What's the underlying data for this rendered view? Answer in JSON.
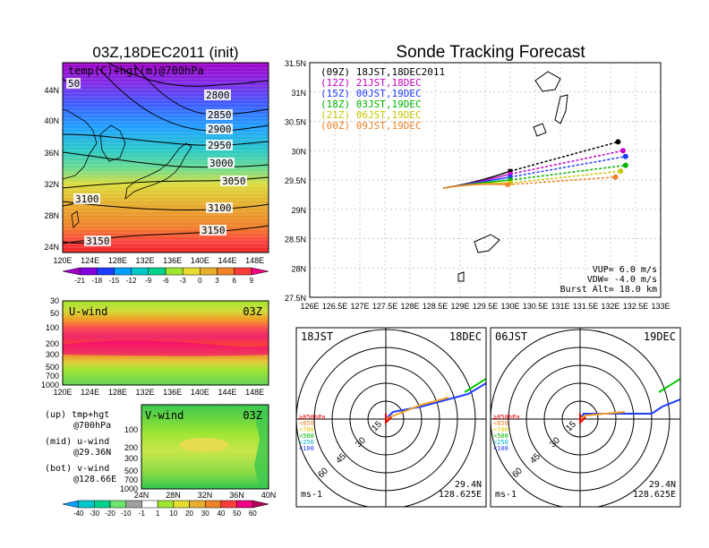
{
  "left_title": "03Z,18DEC2011 (init)",
  "right_title": "Sonde Tracking Forecast",
  "temp_panel": {
    "label": "temp(C)+hgt(m)@700hPa",
    "lon_ticks": [
      "120E",
      "124E",
      "128E",
      "132E",
      "136E",
      "140E",
      "144E",
      "148E"
    ],
    "lat_ticks": [
      "44N",
      "40N",
      "36N",
      "32N",
      "28N",
      "24N"
    ],
    "contours": [
      {
        "label": "2800"
      },
      {
        "label": "2850"
      },
      {
        "label": "2900"
      },
      {
        "label": "2950"
      },
      {
        "label": "3000"
      },
      {
        "label": "3050"
      },
      {
        "label": "3100"
      },
      {
        "label": "3150"
      },
      {
        "label": "3100"
      },
      {
        "label": "3150"
      },
      {
        "label": "50"
      }
    ],
    "colorbar": {
      "labels": [
        "-21",
        "-18",
        "-15",
        "-12",
        "-9",
        "-6",
        "-3",
        "0",
        "3",
        "6",
        "9"
      ],
      "colors": [
        "#a000c8",
        "#8200dc",
        "#1e3cff",
        "#00a0ff",
        "#00c8c8",
        "#00d28c",
        "#a0e632",
        "#e6dc32",
        "#e6af2d",
        "#f08228",
        "#fa3c3c",
        "#f00082"
      ]
    }
  },
  "uwind_panel": {
    "label": "U-wind",
    "time": "03Z",
    "p_ticks": [
      "30",
      "50",
      "100",
      "200",
      "300",
      "500",
      "700",
      "1000"
    ],
    "lon_ticks": [
      "120E",
      "124E",
      "128E",
      "132E",
      "136E",
      "140E",
      "144E",
      "148E"
    ]
  },
  "vwind_panel": {
    "label": "V-wind",
    "time": "03Z",
    "p_ticks": [
      "100",
      "200",
      "300",
      "500",
      "700",
      "1000"
    ],
    "lat_ticks": [
      "24N",
      "28N",
      "32N",
      "36N",
      "40N"
    ]
  },
  "legend_notes": [
    {
      "a": "(up)  tmp+hgt",
      "b": "@700hPa"
    },
    {
      "a": "(mid)  u-wind",
      "b": "@29.36N"
    },
    {
      "a": "(bot)  v-wind",
      "b": "@128.66E"
    }
  ],
  "wind_colorbar": {
    "labels": [
      "-40",
      "-30",
      "-20",
      "-10",
      "-1",
      "1",
      "10",
      "20",
      "30",
      "40",
      "50",
      "60"
    ],
    "colors": [
      "#00a0ff",
      "#00c8c8",
      "#00d28c",
      "#6ee66e",
      "#a0a0a0",
      "#ffffff",
      "#a0e632",
      "#e6dc32",
      "#e6af2d",
      "#f08228",
      "#fa3c3c",
      "#f00082",
      "#b4005a"
    ]
  },
  "chart_data": {
    "type": "line",
    "title": "Sonde Tracking Forecast",
    "x_ticks": [
      "126E",
      "126.5E",
      "127E",
      "127.5E",
      "128E",
      "128.5E",
      "129E",
      "129.5E",
      "130E",
      "130.5E",
      "131E",
      "131.5E",
      "132E",
      "132.5E",
      "133E"
    ],
    "y_ticks": [
      "31.5N",
      "31N",
      "30.5N",
      "30N",
      "29.5N",
      "29N",
      "28.5N",
      "28N",
      "27.5N"
    ],
    "xlim": [
      126,
      133
    ],
    "ylim": [
      27.5,
      31.5
    ],
    "launch": {
      "lon": 128.66,
      "lat": 29.36
    },
    "series": [
      {
        "name": "(09Z)  18JST,18DEC2011",
        "color": "#000000",
        "end": [
          132.15,
          30.15
        ],
        "balloon_end": [
          130.0,
          29.65
        ]
      },
      {
        "name": "(12Z)  21JST,18DEC",
        "color": "#c800c8",
        "end": [
          132.25,
          30.0
        ],
        "balloon_end": [
          130.0,
          29.6
        ]
      },
      {
        "name": "(15Z)  00JST,19DEC",
        "color": "#1e3cff",
        "end": [
          132.3,
          29.9
        ],
        "balloon_end": [
          130.0,
          29.55
        ]
      },
      {
        "name": "(18Z)  03JST,19DEC",
        "color": "#00b400",
        "end": [
          132.3,
          29.75
        ],
        "balloon_end": [
          130.0,
          29.5
        ]
      },
      {
        "name": "(21Z)  06JST,19DEC",
        "color": "#c8c800",
        "end": [
          132.2,
          29.65
        ],
        "balloon_end": [
          130.0,
          29.45
        ]
      },
      {
        "name": "(00Z)  09JST,19DEC",
        "color": "#f08228",
        "end": [
          132.1,
          29.55
        ],
        "balloon_end": [
          129.95,
          29.42
        ]
      }
    ],
    "params": [
      "VUP=  6.0  m/s",
      "VDW= -4.0  m/s",
      "Burst Alt=  18.0  km"
    ]
  },
  "hodographs": [
    {
      "time": "18JST",
      "date": "18DEC",
      "lat": "29.4N",
      "lon": "128.625E",
      "unit": "ms-1",
      "rings": [
        "15",
        "30",
        "45",
        "60"
      ]
    },
    {
      "time": "06JST",
      "date": "19DEC",
      "lat": "29.4N",
      "lon": "128.625E",
      "unit": "ms-1",
      "rings": [
        "15",
        "30",
        "45",
        "60"
      ]
    }
  ],
  "hodo_legend": [
    {
      "label": "≧850hPa",
      "color": "#e60000"
    },
    {
      "label": "<850",
      "color": "#f08228"
    },
    {
      "label": "<700",
      "color": "#e6c800"
    },
    {
      "label": "<500",
      "color": "#00b400"
    },
    {
      "label": "<250",
      "color": "#00b4c8"
    },
    {
      "label": "<100",
      "color": "#1e3cff"
    }
  ]
}
